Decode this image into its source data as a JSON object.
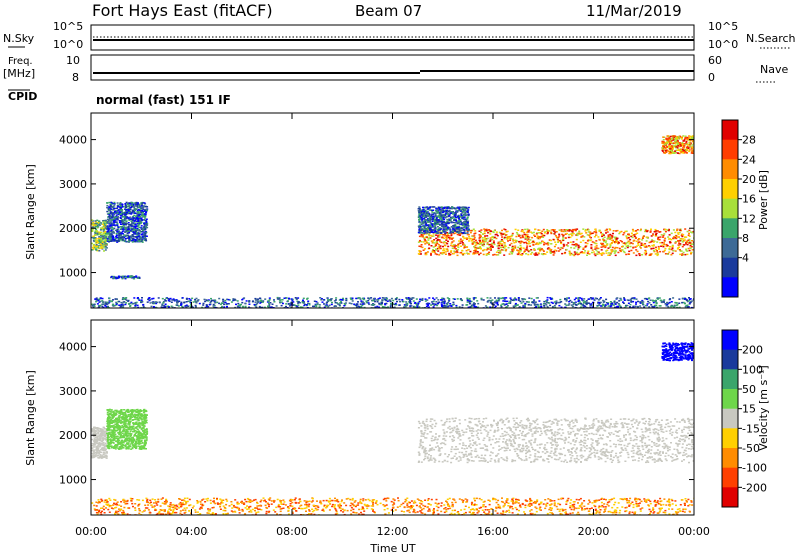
{
  "header": {
    "station": "Fort Hays East (fitACF)",
    "beam": "Beam 07",
    "date": "11/Mar/2019"
  },
  "status_panels": {
    "nsky": {
      "label": "N.Sky",
      "ticks": [
        "10^5",
        "10^0"
      ],
      "right_label": "N.Search",
      "right_ticks": [
        "10^5",
        "10^0"
      ]
    },
    "freq": {
      "label_top": "Freq.",
      "label_unit": "[MHz]",
      "ticks": [
        "10",
        "8"
      ],
      "right_label": "Nave",
      "right_ticks": [
        "60",
        "0"
      ]
    },
    "cpid": {
      "label": "CPID",
      "value": "normal (fast) 151 IF"
    }
  },
  "colorbars": {
    "power": {
      "label": "Power [dB]",
      "ticks": [
        "28",
        "24",
        "20",
        "16",
        "12",
        "8",
        "4"
      ],
      "colors": [
        "#e00000",
        "#ff3d00",
        "#ff8c00",
        "#ffd000",
        "#a8e03a",
        "#3aa56b",
        "#3d6a96",
        "#1a3a9c",
        "#0000ff"
      ]
    },
    "velocity": {
      "label": "Velocity [m s⁻¹]",
      "ticks": [
        "200",
        "100",
        "50",
        "15",
        "-15",
        "-50",
        "-100",
        "-200"
      ],
      "colors": [
        "#0000ff",
        "#1a3a9c",
        "#3aa56b",
        "#6ed64a",
        "#c8c8c0",
        "#ffd000",
        "#ff8c00",
        "#ff4000",
        "#e00000"
      ]
    }
  },
  "chart_data": [
    {
      "type": "heatmap",
      "name": "power",
      "ylabel": "Slant Range [km]",
      "y_ticks": [
        1000,
        2000,
        3000,
        4000
      ],
      "ylim": [
        200,
        4600
      ],
      "xlim": [
        0,
        24
      ],
      "regions": [
        {
          "x": [
            0.0,
            0.6
          ],
          "y": [
            1500,
            2200
          ],
          "level": "medium"
        },
        {
          "x": [
            0.6,
            2.2
          ],
          "y": [
            1700,
            2600
          ],
          "level": "low"
        },
        {
          "x": [
            0.7,
            1.9
          ],
          "y": [
            880,
            940
          ],
          "level": "low"
        },
        {
          "x": [
            13.0,
            24.0
          ],
          "y": [
            1400,
            2000
          ],
          "level": "high"
        },
        {
          "x": [
            13.0,
            15.0
          ],
          "y": [
            1900,
            2500
          ],
          "level": "low"
        },
        {
          "x": [
            22.7,
            24.0
          ],
          "y": [
            3700,
            4100
          ],
          "level": "high"
        },
        {
          "x": [
            0.0,
            24.0
          ],
          "y": [
            200,
            450
          ],
          "level": "low"
        }
      ]
    },
    {
      "type": "heatmap",
      "name": "velocity",
      "ylabel": "Slant Range [km]",
      "xlabel": "Time UT",
      "y_ticks": [
        1000,
        2000,
        3000,
        4000
      ],
      "x_ticks": [
        "00:00",
        "04:00",
        "08:00",
        "12:00",
        "16:00",
        "20:00",
        "00:00"
      ],
      "ylim": [
        200,
        4600
      ],
      "xlim": [
        0,
        24
      ],
      "regions": [
        {
          "x": [
            0.0,
            0.6
          ],
          "y": [
            1500,
            2200
          ],
          "level": "ground"
        },
        {
          "x": [
            0.6,
            2.2
          ],
          "y": [
            1700,
            2600
          ],
          "level": "positive-low"
        },
        {
          "x": [
            13.0,
            24.0
          ],
          "y": [
            1400,
            2400
          ],
          "level": "ground"
        },
        {
          "x": [
            22.7,
            24.0
          ],
          "y": [
            3700,
            4100
          ],
          "level": "positive-high"
        },
        {
          "x": [
            0.0,
            24.0
          ],
          "y": [
            200,
            600
          ],
          "level": "negative-low"
        }
      ]
    }
  ]
}
